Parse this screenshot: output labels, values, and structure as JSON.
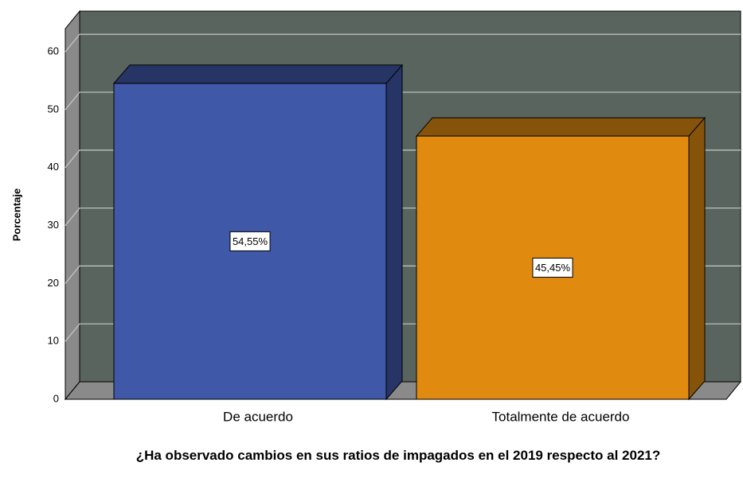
{
  "chart_data": {
    "type": "bar",
    "x_label": "¿Ha observado cambios en sus ratios de impagados en el 2019 respecto al 2021?",
    "y_label": "Porcentaje",
    "categories": [
      "De acuerdo",
      "Totalmente de acuerdo"
    ],
    "series": [
      {
        "name": "Porcentaje",
        "colors": [
          "#3f58a8",
          "#e08a10"
        ],
        "values": [
          54.55,
          45.45
        ],
        "value_labels": [
          "54,55%",
          "45,45%"
        ]
      }
    ],
    "ylim": [
      0,
      64
    ],
    "yticks": [
      0,
      10,
      20,
      30,
      40,
      50,
      60
    ],
    "grid": true
  }
}
